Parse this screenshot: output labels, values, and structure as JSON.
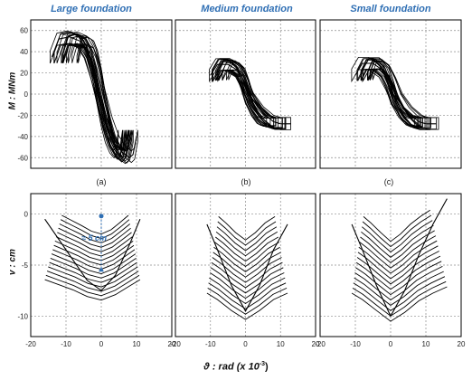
{
  "titles": [
    "Large foundation",
    "Medium foundation",
    "Small foundation"
  ],
  "sublabels": [
    "(a)",
    "(b)",
    "(c)"
  ],
  "top_ylabel": "M : MNm",
  "bottom_ylabel": "v : cm",
  "xlabel_main": "ϑ : rad  (x 10",
  "xlabel_exp": "-3",
  "xlabel_close": ")",
  "annotation": "≈ 5 cm",
  "colors": {
    "title": "#2f6fb4",
    "annotation": "#2f6fb4",
    "curve": "#000000",
    "grid": "#8c8c8c"
  },
  "chart_data": [
    {
      "type": "line",
      "panel": "a",
      "title": "Large foundation",
      "ylabel": "M : MNm",
      "xlim": [
        -20,
        20
      ],
      "ylim": [
        -70,
        70
      ],
      "xticks": [
        -20,
        -10,
        0,
        10,
        20
      ],
      "yticks": [
        -60,
        -40,
        -20,
        0,
        20,
        40,
        60
      ],
      "grid": true,
      "series": [
        {
          "x": [
            -14,
            -12,
            -9,
            -6,
            -4,
            -2,
            0,
            2,
            4,
            6,
            8,
            9,
            10
          ],
          "y": [
            35,
            52,
            54,
            50,
            40,
            20,
            -5,
            -28,
            -45,
            -55,
            -60,
            -57,
            -40
          ]
        }
      ]
    },
    {
      "type": "line",
      "panel": "b",
      "title": "Medium foundation",
      "xlim": [
        -20,
        20
      ],
      "ylim": [
        -70,
        70
      ],
      "xticks": [
        -20,
        -10,
        0,
        10,
        20
      ],
      "yticks": [
        -60,
        -40,
        -20,
        0,
        20,
        40,
        60
      ],
      "grid": true,
      "series": [
        {
          "x": [
            -10,
            -8,
            -5,
            -2,
            0,
            2,
            5,
            8,
            10,
            13
          ],
          "y": [
            18,
            28,
            28,
            22,
            10,
            -5,
            -18,
            -26,
            -28,
            -28
          ]
        }
      ]
    },
    {
      "type": "line",
      "panel": "c",
      "title": "Small foundation",
      "xlim": [
        -20,
        20
      ],
      "ylim": [
        -70,
        70
      ],
      "xticks": [
        -20,
        -10,
        0,
        10,
        20
      ],
      "yticks": [
        -60,
        -40,
        -20,
        0,
        20,
        40,
        60
      ],
      "grid": true,
      "series": [
        {
          "x": [
            -10,
            -8,
            -5,
            -2,
            0,
            2,
            5,
            8,
            10,
            13
          ],
          "y": [
            18,
            29,
            29,
            22,
            10,
            -5,
            -18,
            -26,
            -28,
            -28
          ]
        }
      ]
    },
    {
      "type": "line",
      "panel": "d",
      "ylabel": "v : cm",
      "xlim": [
        -20,
        20
      ],
      "ylim": [
        -12,
        2
      ],
      "xticks": [
        -20,
        -10,
        0,
        10,
        20
      ],
      "yticks": [
        -10,
        -5,
        0
      ],
      "grid": true,
      "annotation": "≈ 5 cm",
      "series": [
        {
          "x": [
            -16,
            -12,
            -8,
            -4,
            0,
            4,
            8,
            11
          ],
          "y": [
            -0.5,
            -2.5,
            -4.5,
            -6.5,
            -7.5,
            -6,
            -3,
            -0.5
          ]
        }
      ]
    },
    {
      "type": "line",
      "panel": "e",
      "xlim": [
        -20,
        20
      ],
      "ylim": [
        -12,
        2
      ],
      "xticks": [
        -20,
        -10,
        0,
        10,
        20
      ],
      "yticks": [
        -10,
        -5,
        0
      ],
      "grid": true,
      "series": [
        {
          "x": [
            -11,
            -8,
            -4,
            0,
            4,
            8,
            12
          ],
          "y": [
            -1,
            -3.5,
            -7,
            -9.5,
            -7,
            -3.5,
            -1
          ]
        }
      ]
    },
    {
      "type": "line",
      "panel": "f",
      "xlim": [
        -20,
        20
      ],
      "ylim": [
        -12,
        2
      ],
      "xticks": [
        -20,
        -10,
        0,
        10,
        20
      ],
      "yticks": [
        -10,
        -5,
        0
      ],
      "grid": true,
      "series": [
        {
          "x": [
            -11,
            -8,
            -4,
            0,
            4,
            8,
            12,
            16
          ],
          "y": [
            -1,
            -3.5,
            -7,
            -10,
            -7.5,
            -4,
            -1,
            1.5
          ]
        }
      ]
    }
  ]
}
